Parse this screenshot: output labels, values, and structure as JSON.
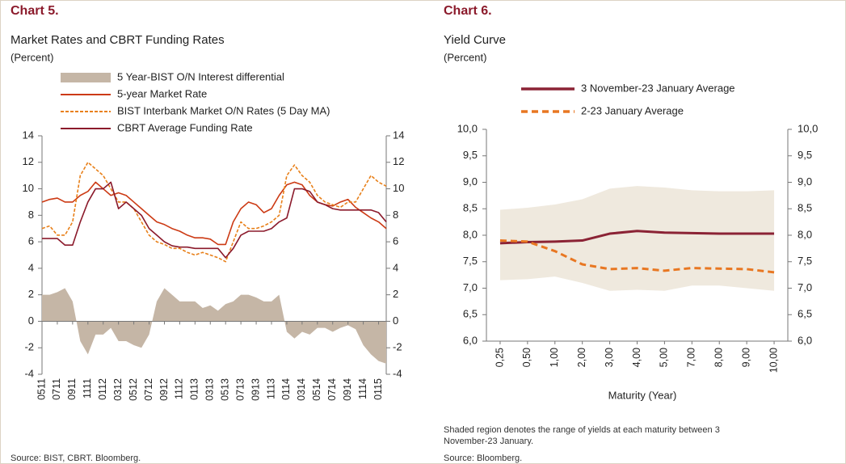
{
  "chart_data": [
    {
      "type": "line",
      "title": "Chart 5.",
      "subtitle": "Market Rates and CBRT Funding Rates",
      "unit": "(Percent)",
      "source": "Source: BIST, CBRT. Bloomberg.",
      "categories": [
        "0511",
        null,
        "0711",
        null,
        "0911",
        null,
        "1111",
        null,
        "0112",
        null,
        "0312",
        null,
        "0512",
        null,
        "0712",
        null,
        "0912",
        null,
        "1112",
        null,
        "0113",
        null,
        "0313",
        null,
        "0513",
        null,
        "0713",
        null,
        "0913",
        null,
        "1113",
        null,
        "0114",
        null,
        "0314",
        null,
        "0514",
        null,
        "0714",
        null,
        "0914",
        null,
        "1114",
        null,
        "0115",
        null
      ],
      "series": [
        {
          "name": "5 Year-BIST O/N Interest differential",
          "style": "area",
          "color": "#c5b6a6",
          "values": [
            2.0,
            2.0,
            2.2,
            2.5,
            1.5,
            -1.5,
            -2.5,
            -1.0,
            -1.0,
            -0.5,
            -1.5,
            -1.5,
            -1.8,
            -2.0,
            -1.0,
            1.5,
            2.5,
            2.0,
            1.5,
            1.5,
            1.5,
            1.0,
            1.2,
            0.8,
            1.3,
            1.5,
            2.0,
            2.0,
            1.8,
            1.5,
            1.5,
            2.0,
            -0.8,
            -1.3,
            -0.8,
            -1.0,
            -0.5,
            -0.5,
            -0.8,
            -0.5,
            -0.3,
            -0.6,
            -1.8,
            -2.5,
            -3.0,
            -3.2
          ]
        },
        {
          "name": "5-year Market Rate",
          "style": "line",
          "color": "#cc3a14",
          "values": [
            9.0,
            9.2,
            9.3,
            9.0,
            9.0,
            9.5,
            9.8,
            10.5,
            10.0,
            9.5,
            9.7,
            9.5,
            9.0,
            8.5,
            8.0,
            7.5,
            7.3,
            7.0,
            6.8,
            6.5,
            6.3,
            6.3,
            6.2,
            5.8,
            5.8,
            7.5,
            8.5,
            9.0,
            8.8,
            8.2,
            8.5,
            9.5,
            10.3,
            10.5,
            10.3,
            9.5,
            9.0,
            8.8,
            8.7,
            9.0,
            9.2,
            8.6,
            8.2,
            7.8,
            7.5,
            7.0
          ]
        },
        {
          "name": "BIST Interbank Market O/N Rates (5 Day MA)",
          "style": "line",
          "dash": true,
          "color": "#e8801a",
          "values": [
            7.0,
            7.2,
            6.5,
            6.5,
            7.5,
            11.0,
            12.0,
            11.5,
            11.0,
            10.0,
            9.0,
            9.0,
            8.5,
            7.5,
            6.5,
            6.0,
            5.8,
            5.5,
            5.5,
            5.2,
            5.0,
            5.2,
            5.0,
            4.8,
            4.5,
            6.0,
            7.5,
            7.0,
            7.0,
            7.2,
            7.5,
            8.0,
            11.0,
            11.8,
            11.0,
            10.5,
            9.5,
            9.0,
            8.8,
            8.6,
            9.0,
            9.0,
            10.0,
            11.0,
            10.5,
            10.2
          ]
        },
        {
          "name": "CBRT Average Funding Rate",
          "style": "line",
          "color": "#8b1a2b",
          "values": [
            6.25,
            6.25,
            6.25,
            5.75,
            5.75,
            7.5,
            9.0,
            10.0,
            10.0,
            10.5,
            8.5,
            9.0,
            8.5,
            8.0,
            7.0,
            6.5,
            6.0,
            5.7,
            5.6,
            5.6,
            5.5,
            5.5,
            5.5,
            5.5,
            4.8,
            5.5,
            6.5,
            6.8,
            6.8,
            6.8,
            7.0,
            7.5,
            7.8,
            10.0,
            10.0,
            9.8,
            9.0,
            8.8,
            8.5,
            8.4,
            8.4,
            8.4,
            8.4,
            8.4,
            8.2,
            7.5
          ]
        }
      ],
      "ylim": [
        -4,
        14
      ],
      "yticks": [
        -4,
        -2,
        0,
        2,
        4,
        6,
        8,
        10,
        12,
        14
      ],
      "y2lim": [
        -4,
        14
      ],
      "y2ticks": [
        -4,
        -2,
        0,
        2,
        4,
        6,
        8,
        10,
        12,
        14
      ],
      "legend": "top"
    },
    {
      "type": "line",
      "title": "Chart 6.",
      "subtitle": "Yield Curve",
      "unit": "(Percent)",
      "x_label": "Maturity (Year)",
      "note": [
        "Shaded region denotes the range of yields at each maturity between 3",
        "November-23 January."
      ],
      "source": "Source: Bloomberg.",
      "categories": [
        "0,25",
        "0,50",
        "1,00",
        "2,00",
        "3,00",
        "4,00",
        "5,00",
        "7,00",
        "8,00",
        "9,00",
        "10,00"
      ],
      "range": {
        "color": "#efe9de",
        "high": [
          8.48,
          8.52,
          8.58,
          8.68,
          8.88,
          8.93,
          8.9,
          8.85,
          8.83,
          8.83,
          8.85
        ],
        "low": [
          7.15,
          7.17,
          7.22,
          7.1,
          6.95,
          6.97,
          6.95,
          7.05,
          7.05,
          7.0,
          6.95
        ]
      },
      "series": [
        {
          "name": "3 November-23 January Average",
          "style": "line",
          "color": "#8b2335",
          "values": [
            7.85,
            7.87,
            7.88,
            7.9,
            8.03,
            8.08,
            8.05,
            8.04,
            8.03,
            8.03,
            8.03
          ]
        },
        {
          "name": "2-23 January Average",
          "style": "line",
          "dash": true,
          "color": "#e87722",
          "values": [
            7.9,
            7.88,
            7.7,
            7.45,
            7.36,
            7.38,
            7.33,
            7.38,
            7.37,
            7.36,
            7.3
          ]
        }
      ],
      "ylim": [
        6,
        10
      ],
      "yticks": [
        {
          "value": 6,
          "label": "6,0"
        },
        {
          "value": 6.5,
          "label": "6,5"
        },
        {
          "value": 7,
          "label": "7,0"
        },
        {
          "value": 7.5,
          "label": "7,5"
        },
        {
          "value": 8,
          "label": "8,0"
        },
        {
          "value": 8.5,
          "label": "8,5"
        },
        {
          "value": 9,
          "label": "9,0"
        },
        {
          "value": 9.5,
          "label": "9,5"
        },
        {
          "value": 10,
          "label": "10,0"
        }
      ],
      "y2lim": [
        6,
        10
      ],
      "y2ticks": [
        {
          "value": 6,
          "label": "6,0"
        },
        {
          "value": 6.5,
          "label": "6,5"
        },
        {
          "value": 7,
          "label": "7,0"
        },
        {
          "value": 7.5,
          "label": "7,5"
        },
        {
          "value": 8,
          "label": "8,0"
        },
        {
          "value": 8.5,
          "label": "8,5"
        },
        {
          "value": 9,
          "label": "9,0"
        },
        {
          "value": 9.5,
          "label": "9,5"
        },
        {
          "value": 10,
          "label": "10,0"
        }
      ],
      "legend": "top"
    }
  ]
}
